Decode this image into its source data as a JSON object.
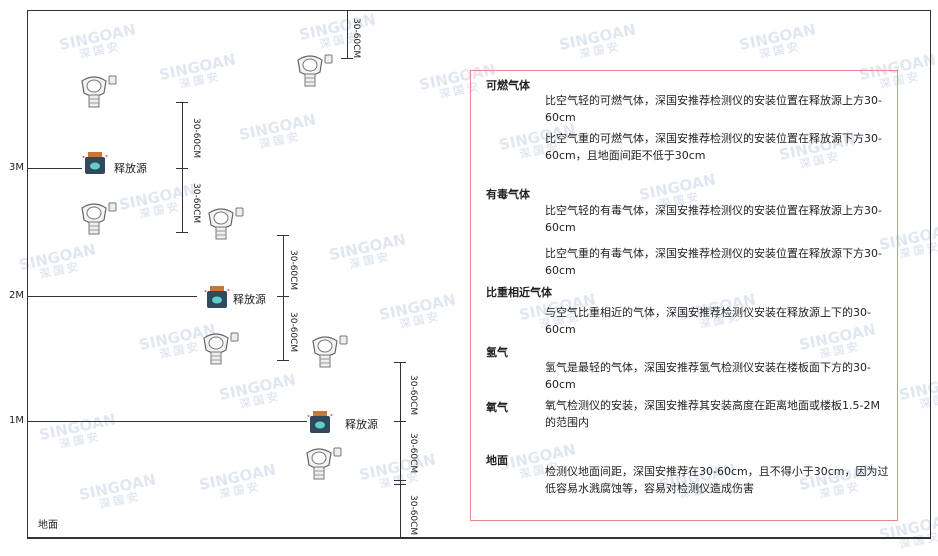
{
  "watermark": {
    "brand": "SINGOAN",
    "cn": "深国安"
  },
  "levels": {
    "l3": "3M",
    "l2": "2M",
    "l1": "1M",
    "ground": "地面"
  },
  "source_label": "释放源",
  "dimension_label": "30-60CM",
  "panel": {
    "sections": [
      {
        "heading": "可燃气体",
        "items": [
          "比空气轻的可燃气体，深国安推荐检测仪的安装位置在释放源上方30-60cm",
          "比空气重的可燃气体，深国安推荐检测仪的安装位置在释放源下方30-60cm，且地面间距不低于30cm"
        ]
      },
      {
        "heading": "有毒气体",
        "items": [
          "比空气轻的有毒气体，深国安推荐检测仪的安装位置在释放源上方30-60cm",
          "比空气重的有毒气体，深国安推荐检测仪的安装位置在释放源下方30-60cm"
        ]
      },
      {
        "heading": "比重相近气体",
        "items": [
          "与空气比重相近的气体，深国安推荐检测仪安装在释放源上下的30-60cm"
        ]
      },
      {
        "heading": "氢气",
        "items": [
          "氢气是最轻的气体，深国安推荐氢气检测仪安装在楼板面下方的30-60cm"
        ]
      },
      {
        "heading": "氧气",
        "items": [
          "氧气检测仪的安装，深国安推荐其安装高度在距离地面或楼板1.5-2M的范围内"
        ]
      },
      {
        "heading": "地面",
        "items": [
          "检测仪地面间距，深国安推荐在30-60cm，且不得小于30cm，因为过低容易水溅腐蚀等，容易对检测仪造成伤害"
        ]
      }
    ]
  },
  "colors": {
    "panel_border": "#e88888",
    "source_body": "#2f4a5e",
    "source_cap": "#c5763a"
  }
}
